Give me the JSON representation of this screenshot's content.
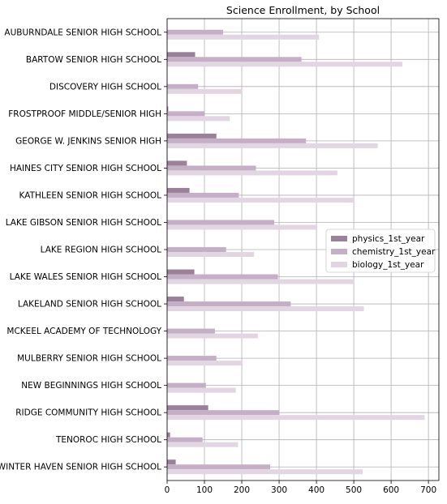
{
  "chart_data": {
    "type": "bar",
    "orientation": "horizontal",
    "title": "Science Enrollment, by School",
    "xlabel": "",
    "ylabel": "",
    "xlim": [
      0,
      728
    ],
    "xticks": [
      0,
      100,
      200,
      300,
      400,
      500,
      600,
      700
    ],
    "grid": true,
    "legend_position": "center-right",
    "categories": [
      "AUBURNDALE SENIOR HIGH SCHOOL",
      "BARTOW SENIOR HIGH SCHOOL",
      "DISCOVERY HIGH SCHOOL",
      "FROSTPROOF MIDDLE/SENIOR HIGH",
      "GEORGE W. JENKINS SENIOR HIGH",
      "HAINES CITY SENIOR HIGH SCHOOL",
      "KATHLEEN SENIOR HIGH SCHOOL",
      "LAKE GIBSON SENIOR HIGH SCHOOL",
      "LAKE REGION HIGH SCHOOL",
      "LAKE WALES SENIOR HIGH SCHOOL",
      "LAKELAND SENIOR HIGH SCHOOL",
      "MCKEEL ACADEMY OF TECHNOLOGY",
      "MULBERRY SENIOR HIGH SCHOOL",
      "NEW BEGINNINGS HIGH SCHOOL",
      "RIDGE COMMUNITY HIGH SCHOOL",
      "TENOROC HIGH SCHOOL",
      "WINTER HAVEN SENIOR HIGH SCHOOL"
    ],
    "series": [
      {
        "name": "physics_1st_year",
        "color": "#9a8099",
        "values": [
          0,
          75,
          0,
          3,
          132,
          53,
          60,
          0,
          0,
          73,
          45,
          0,
          0,
          0,
          110,
          8,
          23
        ]
      },
      {
        "name": "chemistry_1st_year",
        "color": "#c4afc6",
        "values": [
          150,
          360,
          83,
          100,
          372,
          238,
          192,
          287,
          158,
          297,
          331,
          128,
          132,
          104,
          300,
          95,
          276
        ]
      },
      {
        "name": "biology_1st_year",
        "color": "#e2d6e2",
        "values": [
          407,
          630,
          200,
          168,
          564,
          456,
          500,
          402,
          233,
          500,
          527,
          243,
          202,
          184,
          690,
          190,
          524
        ]
      }
    ]
  }
}
